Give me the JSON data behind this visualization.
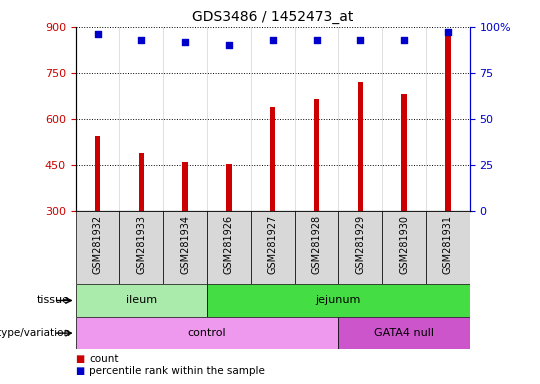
{
  "title": "GDS3486 / 1452473_at",
  "samples": [
    "GSM281932",
    "GSM281933",
    "GSM281934",
    "GSM281926",
    "GSM281927",
    "GSM281928",
    "GSM281929",
    "GSM281930",
    "GSM281931"
  ],
  "counts": [
    545,
    490,
    460,
    455,
    640,
    665,
    720,
    680,
    880
  ],
  "percentile_ranks": [
    96,
    93,
    92,
    90,
    93,
    93,
    93,
    93,
    97
  ],
  "ylim_left": [
    300,
    900
  ],
  "ylim_right": [
    0,
    100
  ],
  "yticks_left": [
    300,
    450,
    600,
    750,
    900
  ],
  "yticks_right": [
    0,
    25,
    50,
    75,
    100
  ],
  "bar_color": "#cc0000",
  "dot_color": "#0000cc",
  "tissue_labels": [
    {
      "label": "ileum",
      "start": 0,
      "end": 3,
      "color": "#aaeaaa"
    },
    {
      "label": "jejunum",
      "start": 3,
      "end": 9,
      "color": "#44dd44"
    }
  ],
  "genotype_labels": [
    {
      "label": "control",
      "start": 0,
      "end": 6,
      "color": "#ee99ee"
    },
    {
      "label": "GATA4 null",
      "start": 6,
      "end": 9,
      "color": "#cc55cc"
    }
  ],
  "legend_count_color": "#cc0000",
  "legend_dot_color": "#0000cc"
}
